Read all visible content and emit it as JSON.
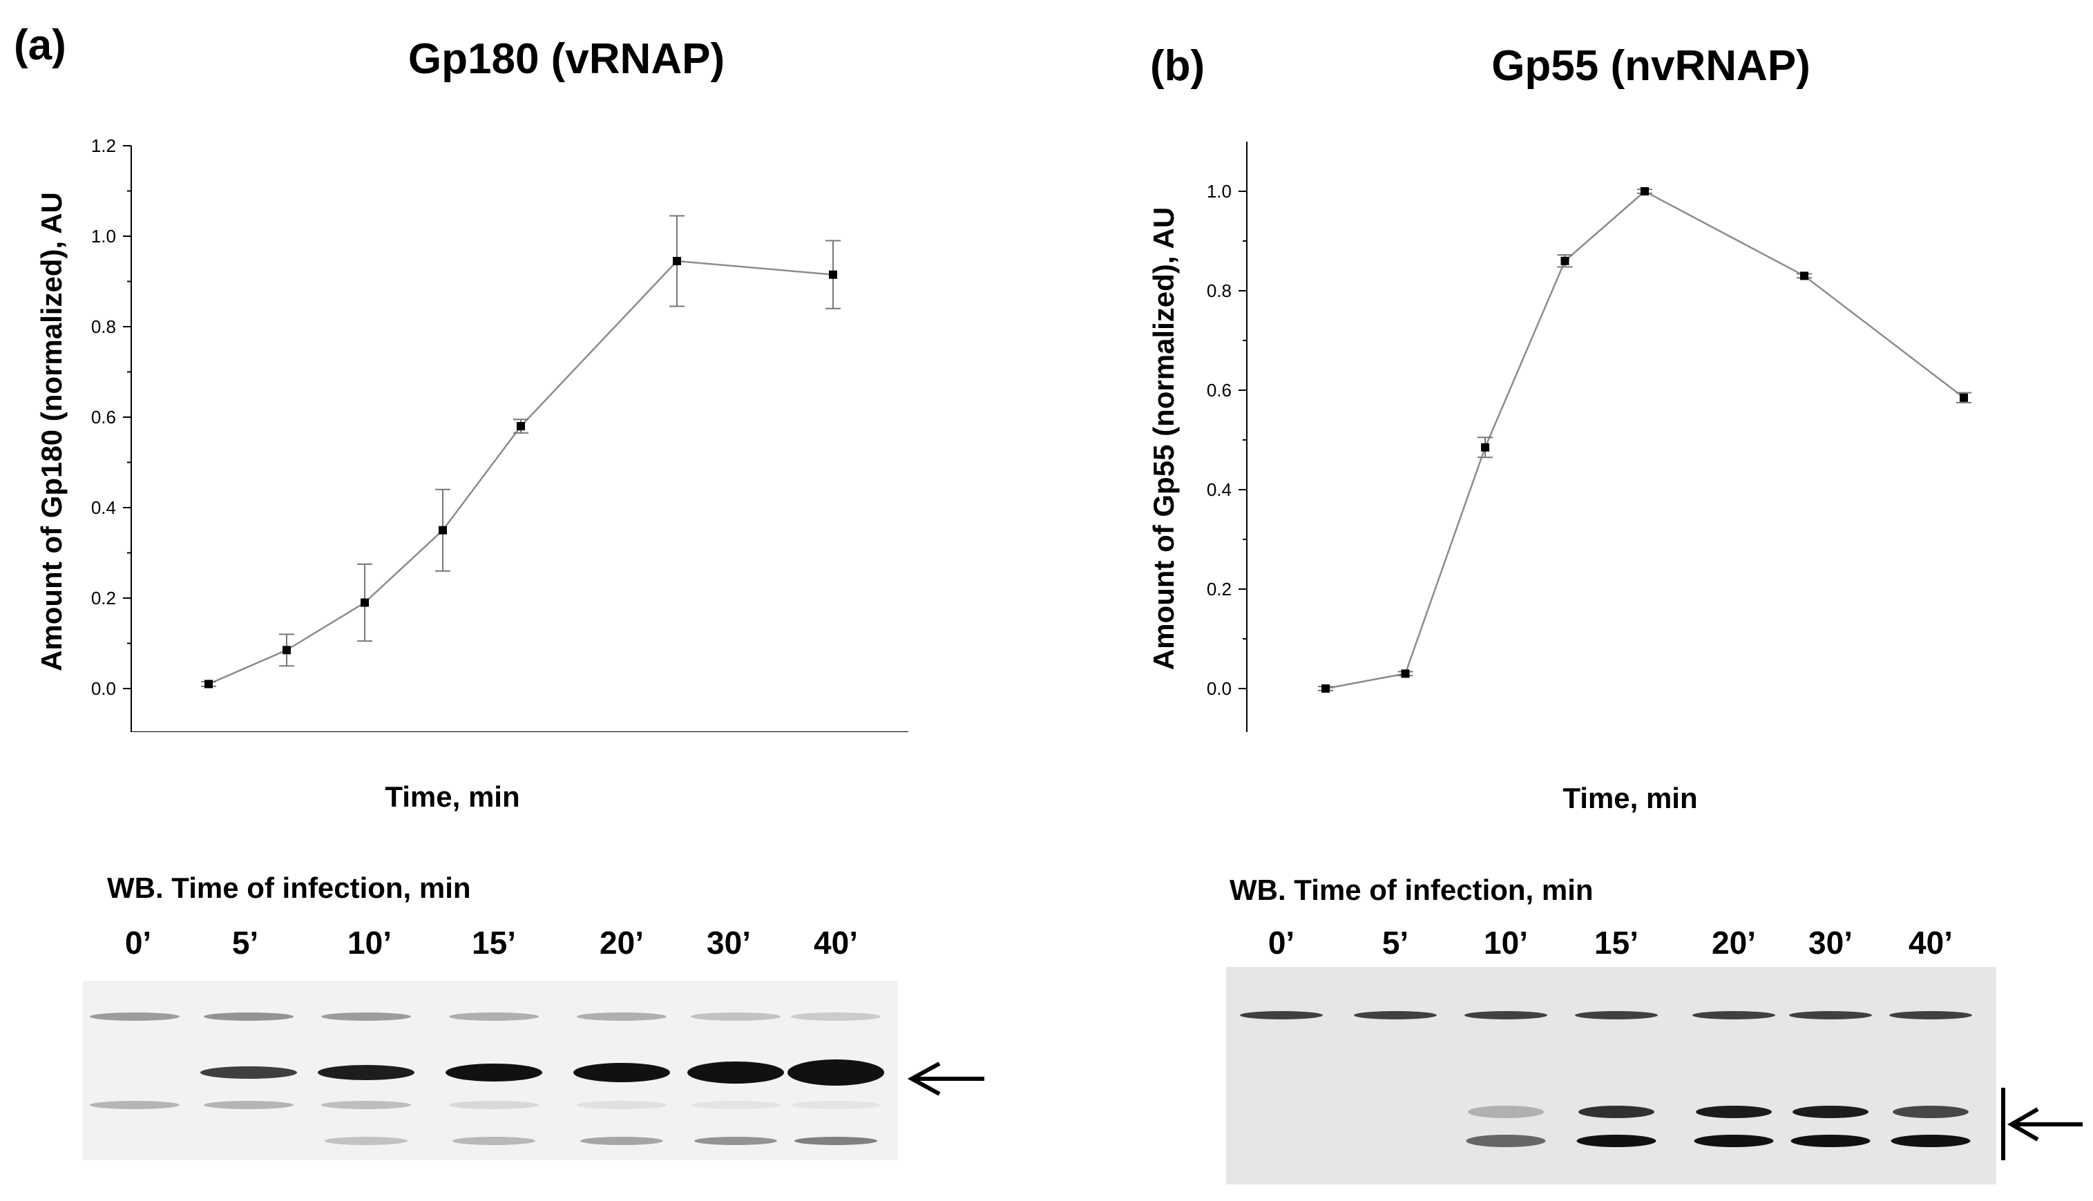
{
  "panels": {
    "a": {
      "letter": "(a)",
      "title": "Gp180 (vRNAP)",
      "wb_title": "WB. Time of infection, min",
      "lanes": [
        "0’",
        "5’",
        "10’",
        "15’",
        "20’",
        "30’",
        "40’"
      ]
    },
    "b": {
      "letter": "(b)",
      "title": "Gp55 (nvRNAP)",
      "wb_title": "WB. Time of infection, min",
      "lanes": [
        "0’",
        "5’",
        "10’",
        "15’",
        "20’",
        "30’",
        "40’"
      ]
    }
  },
  "chart_data": [
    {
      "type": "line",
      "title": "Gp180 (vRNAP)",
      "xlabel": "Time, min",
      "ylabel": "Amount of Gp180 (normalized), AU",
      "x": [
        0,
        5,
        10,
        15,
        20,
        30,
        40
      ],
      "series": [
        {
          "values": [
            0.01,
            0.085,
            0.19,
            0.35,
            0.58,
            0.945,
            0.915
          ],
          "errors": [
            0.005,
            0.035,
            0.085,
            0.09,
            0.015,
            0.1,
            0.075
          ]
        }
      ],
      "xlim": [
        -5,
        45
      ],
      "ylim": [
        -0.1,
        1.2
      ],
      "xticks": [
        0,
        10,
        20,
        30,
        40
      ],
      "yticks": [
        0.0,
        0.2,
        0.4,
        0.6,
        0.8,
        1.0,
        1.2
      ],
      "ytick_labels": [
        "0.0",
        "0.2",
        "0.4",
        "0.6",
        "0.8",
        "1.0",
        "1.2"
      ],
      "grid": false,
      "line_color": "#8c8c8c",
      "marker_color": "#000000"
    },
    {
      "type": "line",
      "title": "Gp55 (nvRNAP)",
      "xlabel": "Time, min",
      "ylabel": "Amount of Gp55 (normalized), AU",
      "x": [
        0,
        5,
        10,
        15,
        20,
        30,
        40
      ],
      "series": [
        {
          "values": [
            0.0,
            0.03,
            0.485,
            0.86,
            1.0,
            0.83,
            0.585
          ],
          "errors": [
            0.004,
            0.004,
            0.02,
            0.012,
            0.004,
            0.004,
            0.01
          ]
        }
      ],
      "xlim": [
        -5,
        45
      ],
      "ylim": [
        -0.1,
        1.1
      ],
      "xticks": [
        0,
        10,
        20,
        30,
        40
      ],
      "yticks": [
        0.0,
        0.2,
        0.4,
        0.6,
        0.8,
        1.0
      ],
      "ytick_labels": [
        "0.0",
        "0.2",
        "0.4",
        "0.6",
        "0.8",
        "1.0"
      ],
      "grid": false,
      "line_color": "#8c8c8c",
      "marker_color": "#000000"
    }
  ]
}
